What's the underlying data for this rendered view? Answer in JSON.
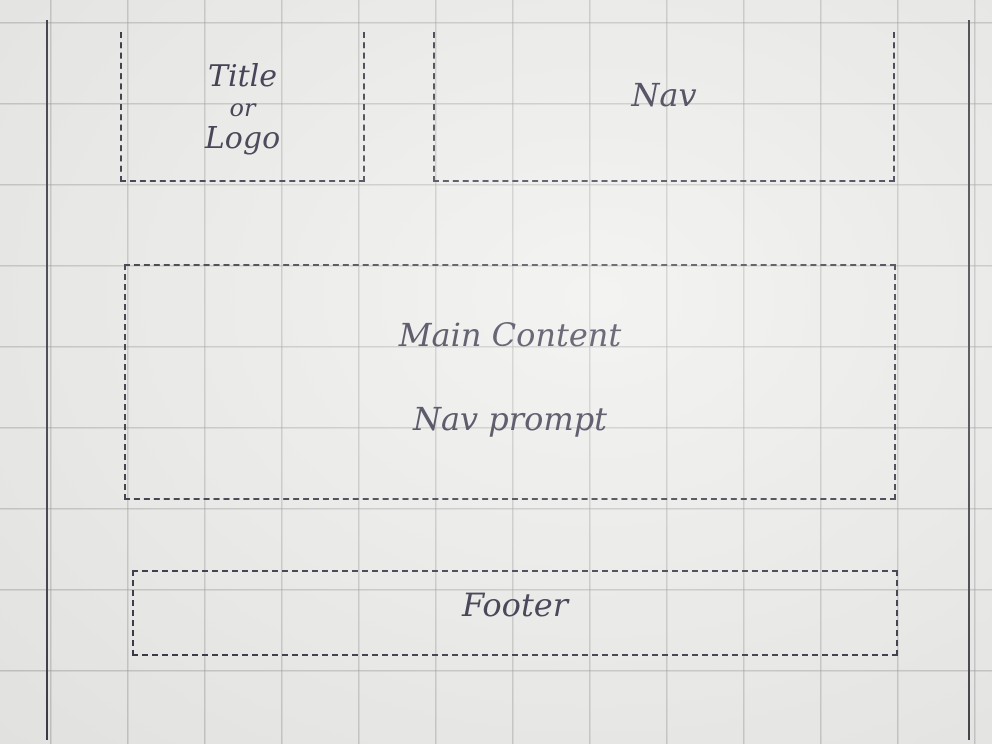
{
  "wireframe": {
    "logo": {
      "line1": "Title",
      "line2": "or",
      "line3": "Logo"
    },
    "nav": {
      "label": "Nav"
    },
    "main": {
      "line1": "Main Content",
      "line2": "Nav prompt"
    },
    "footer": {
      "label": "Footer"
    }
  }
}
